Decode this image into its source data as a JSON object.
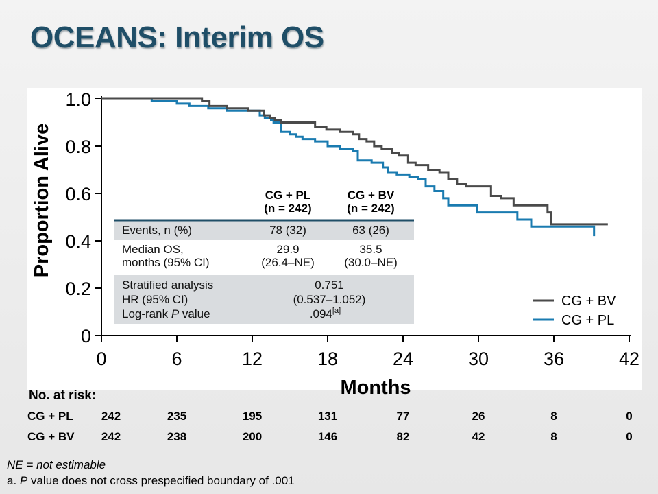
{
  "slide": {
    "title": "OCEANS: Interim OS",
    "footnotes": {
      "ne": "NE = not estimable",
      "a_prefix": "a. ",
      "a_p": "P",
      "a_rest": " value does not cross prespecified boundary of .001"
    }
  },
  "stats_table": {
    "col1_header": [
      "CG + PL",
      "(n = 242)"
    ],
    "col2_header": [
      "CG + BV",
      "(n = 242)"
    ],
    "rows": [
      {
        "label": [
          "Events, n (%)"
        ],
        "v1": [
          "78 (32)"
        ],
        "v2": [
          "63 (26)"
        ]
      },
      {
        "label": [
          "Median OS,",
          "months (95% CI)"
        ],
        "v1": [
          "29.9",
          "(26.4–NE)"
        ],
        "v2": [
          "35.5",
          "(30.0–NE)"
        ]
      }
    ],
    "stratified": {
      "label": [
        "Stratified analysis",
        "HR (95% CI)",
        "Log-rank "
      ],
      "label_p": "P",
      "label_p_rest": " value",
      "values": [
        "0.751",
        "(0.537–1.052)",
        ".094"
      ],
      "superscript": "[a]"
    }
  },
  "risk_table": {
    "title": "No. at risk:",
    "rows": [
      {
        "label": "CG + PL",
        "values": [
          "242",
          "235",
          "195",
          "131",
          "77",
          "26",
          "8",
          "0"
        ]
      },
      {
        "label": "CG + BV",
        "values": [
          "242",
          "238",
          "200",
          "146",
          "82",
          "42",
          "8",
          "0"
        ]
      }
    ]
  },
  "colors": {
    "bv": "#4a4a4a",
    "pl": "#1a7bb0",
    "title": "#1f4e67",
    "table_band": "#d9dcdf",
    "table_rule": "#1f4e67"
  },
  "chart_data": {
    "type": "line",
    "xlabel": "Months",
    "ylabel": "Proportion Alive",
    "xlim": [
      0,
      42
    ],
    "ylim": [
      0,
      1.0
    ],
    "xticks": [
      "0",
      "6",
      "12",
      "18",
      "24",
      "30",
      "36",
      "42"
    ],
    "yticks": [
      "0",
      "0.2",
      "0.4",
      "0.6",
      "0.8",
      "1.0"
    ],
    "legend": "bottom-right",
    "series": [
      {
        "name": "CG + BV",
        "x": [
          0,
          4.4,
          8,
          8.6,
          10,
          11.7,
          12.9,
          13.4,
          13.8,
          14.3,
          15,
          16,
          17,
          17.9,
          19,
          19.6,
          20,
          20.5,
          21.1,
          21.7,
          22.3,
          23.1,
          23.7,
          24.4,
          25,
          26,
          26.9,
          27.6,
          28.3,
          29,
          30,
          31,
          31.8,
          32.8,
          34.2,
          35,
          35.5,
          35.8,
          40.3
        ],
        "y": [
          1.0,
          1.0,
          0.99,
          0.97,
          0.96,
          0.95,
          0.93,
          0.92,
          0.91,
          0.9,
          0.9,
          0.9,
          0.88,
          0.87,
          0.86,
          0.86,
          0.85,
          0.83,
          0.82,
          0.8,
          0.79,
          0.77,
          0.76,
          0.73,
          0.72,
          0.7,
          0.69,
          0.66,
          0.64,
          0.63,
          0.63,
          0.59,
          0.58,
          0.55,
          0.55,
          0.55,
          0.52,
          0.47,
          0.47
        ]
      },
      {
        "name": "CG + PL",
        "x": [
          0,
          2.5,
          4,
          6,
          7,
          8.5,
          10,
          12,
          12.6,
          13,
          13.5,
          13.7,
          14.3,
          14.6,
          15,
          15.5,
          16,
          17,
          18,
          19,
          20,
          20.4,
          21.5,
          22.4,
          22.8,
          23.5,
          24.5,
          25.2,
          25.8,
          26.5,
          27.2,
          27.6,
          29.9,
          33.1,
          34.2,
          39.2
        ],
        "y": [
          1.0,
          1.0,
          0.99,
          0.98,
          0.97,
          0.96,
          0.95,
          0.95,
          0.93,
          0.92,
          0.91,
          0.9,
          0.86,
          0.86,
          0.85,
          0.84,
          0.83,
          0.82,
          0.8,
          0.79,
          0.78,
          0.74,
          0.73,
          0.71,
          0.69,
          0.68,
          0.67,
          0.66,
          0.63,
          0.61,
          0.58,
          0.55,
          0.52,
          0.49,
          0.46,
          0.42
        ]
      }
    ]
  }
}
